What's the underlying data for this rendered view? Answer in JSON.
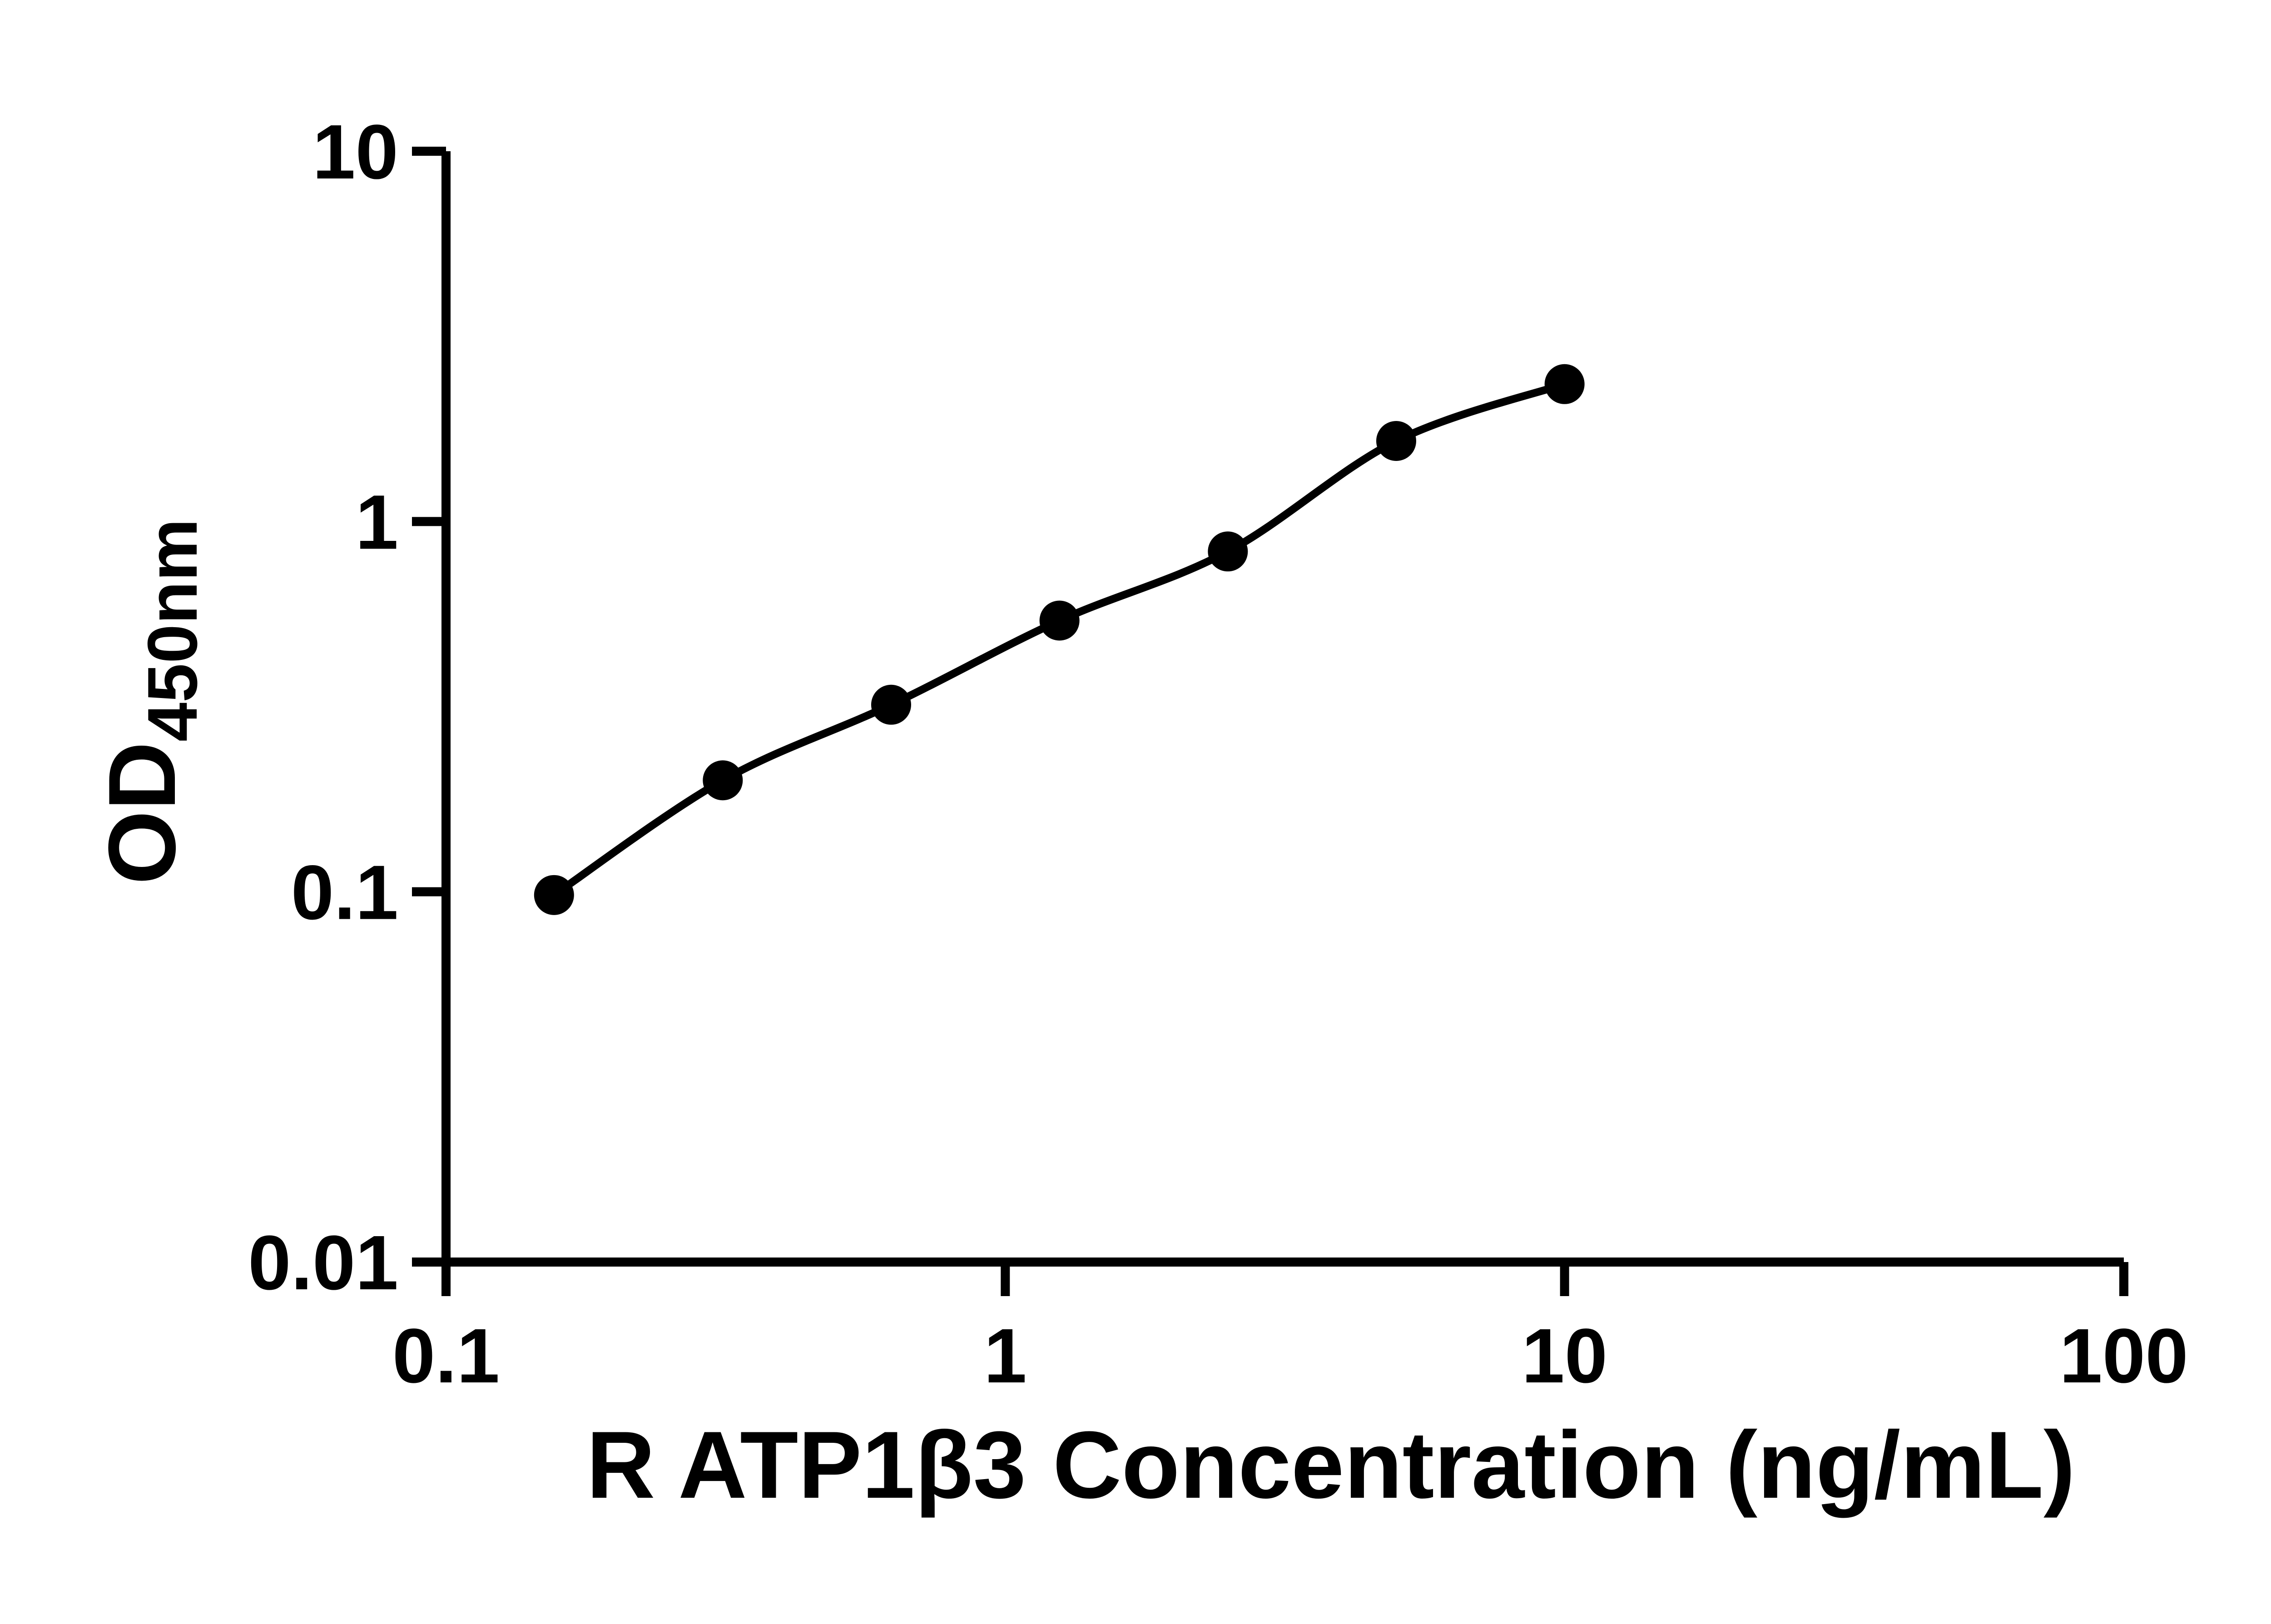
{
  "chart_data": {
    "type": "scatter",
    "title": "",
    "xlabel": "R ATP1β3 Concentration (ng/mL)",
    "ylabel_main": "OD",
    "ylabel_sub": "450nm",
    "x_scale": "log",
    "y_scale": "log",
    "xlim": [
      0.1,
      100
    ],
    "ylim": [
      0.01,
      10
    ],
    "grid": false,
    "legend": false,
    "x_ticks": [
      {
        "value": 0.1,
        "label": "0.1"
      },
      {
        "value": 1,
        "label": "1"
      },
      {
        "value": 10,
        "label": "10"
      },
      {
        "value": 100,
        "label": "100"
      }
    ],
    "y_ticks": [
      {
        "value": 0.01,
        "label": "0.01"
      },
      {
        "value": 0.1,
        "label": "0.1"
      },
      {
        "value": 1,
        "label": "1"
      },
      {
        "value": 10,
        "label": "10"
      }
    ],
    "series": [
      {
        "marker": "circle",
        "fit": "smooth-curve",
        "x": [
          0.156,
          0.3125,
          0.625,
          1.25,
          2.5,
          5,
          10
        ],
        "y": [
          0.098,
          0.2,
          0.32,
          0.54,
          0.83,
          1.65,
          2.35
        ]
      }
    ],
    "colors": {
      "points": "#000000",
      "curve": "#000000",
      "axes": "#000000",
      "text": "#000000",
      "background": "#ffffff"
    }
  }
}
